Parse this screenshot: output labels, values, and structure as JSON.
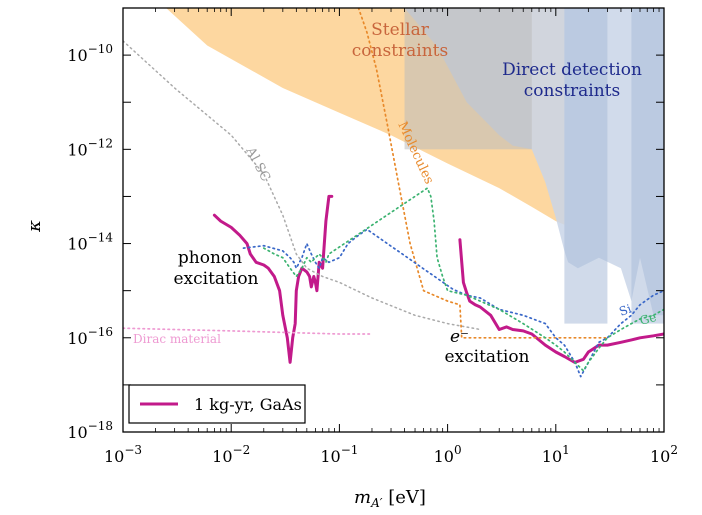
{
  "chart_data": {
    "type": "line",
    "xscale": "log",
    "yscale": "log",
    "xlim": [
      0.001,
      100
    ],
    "ylim": [
      1e-18,
      1e-09
    ],
    "xlabel": "m_A' [eV]",
    "ylabel": "κ",
    "x_ticks": [
      {
        "value": 0.001,
        "base": "10",
        "exp": "−3"
      },
      {
        "value": 0.01,
        "base": "10",
        "exp": "−2"
      },
      {
        "value": 0.1,
        "base": "10",
        "exp": "−1"
      },
      {
        "value": 1,
        "base": "10",
        "exp": "0"
      },
      {
        "value": 10,
        "base": "10",
        "exp": "1"
      },
      {
        "value": 100,
        "base": "10",
        "exp": "2"
      }
    ],
    "y_ticks": [
      {
        "value": 1e-18,
        "base": "10",
        "exp": "−18"
      },
      {
        "value": 1e-16,
        "base": "10",
        "exp": "−16"
      },
      {
        "value": 1e-14,
        "base": "10",
        "exp": "−14"
      },
      {
        "value": 1e-12,
        "base": "10",
        "exp": "−12"
      },
      {
        "value": 1e-10,
        "base": "10",
        "exp": "−10"
      }
    ],
    "legend": {
      "placement": "bottom-left",
      "entries": [
        {
          "label": "1 kg-yr, GaAs",
          "color": "#c21a8a"
        }
      ]
    },
    "regions": [
      {
        "label": "Stellar constraints",
        "color": "#fdd08f",
        "points": [
          [
            0.0025,
            1e-09
          ],
          [
            0.006,
            1.6e-10
          ],
          [
            0.03,
            2e-11
          ],
          [
            0.1,
            6e-12
          ],
          [
            0.3,
            2e-12
          ],
          [
            1,
            5e-13
          ],
          [
            3,
            1.5e-13
          ],
          [
            6,
            6e-14
          ],
          [
            10,
            3e-14
          ],
          [
            12,
            2.5e-14
          ],
          [
            12,
            1e-09
          ]
        ]
      },
      {
        "label": "Direct detection constraints",
        "color": "#c9d5e8",
        "points": [
          [
            0.4,
            1e-09
          ],
          [
            0.8,
            1.5e-10
          ],
          [
            1.5,
            1e-11
          ],
          [
            3,
            2e-12
          ],
          [
            4,
            1.2e-12
          ],
          [
            6,
            1e-12
          ],
          [
            8,
            2e-13
          ],
          [
            10,
            3.5e-14
          ],
          [
            12,
            7e-15
          ],
          [
            13,
            4e-15
          ],
          [
            16,
            3e-15
          ],
          [
            25,
            5e-15
          ],
          [
            40,
            3e-15
          ],
          [
            50,
            6e-16
          ],
          [
            60,
            5e-15
          ],
          [
            80,
            3e-16
          ],
          [
            100,
            3e-16
          ],
          [
            100,
            1e-09
          ]
        ]
      }
    ],
    "bands": [
      {
        "x0": 0.4,
        "x1": 6,
        "ymin": 1e-12,
        "color": "#bcbcbc"
      },
      {
        "x0": 12,
        "x1": 30,
        "ymin": 2e-16,
        "color": "#a9bcd8"
      },
      {
        "x0": 50,
        "x1": 100,
        "ymin": 2e-16,
        "color": "#a9bcd8"
      }
    ],
    "series": [
      {
        "name": "1 kg-yr, GaAs",
        "color": "#c21a8a",
        "style": "solid",
        "width": 3,
        "x": [
          0.007,
          0.008,
          0.01,
          0.012,
          0.014,
          0.015,
          0.017,
          0.02,
          0.022,
          0.025,
          0.028,
          0.03,
          0.033,
          0.035,
          0.037,
          0.039,
          0.04,
          0.042,
          0.045,
          0.05,
          0.053,
          0.055,
          0.058,
          0.06,
          0.062,
          0.065,
          0.07,
          0.072,
          0.075,
          0.08,
          0.085
        ],
        "y": [
          4e-14,
          3e-14,
          2.2e-14,
          1.5e-14,
          1e-14,
          6e-15,
          4e-15,
          3.5e-15,
          3e-15,
          2e-15,
          1e-15,
          3e-16,
          1e-16,
          3e-17,
          1e-16,
          2e-16,
          1e-15,
          2e-15,
          3e-15,
          2.5e-15,
          2e-15,
          1.2e-15,
          2e-15,
          1.5e-15,
          1e-15,
          4e-15,
          3e-15,
          8e-15,
          3e-14,
          1e-13,
          1e-13
        ]
      },
      {
        "name": "GaAs electron",
        "color": "#c21a8a",
        "style": "solid",
        "width": 3,
        "x": [
          1.3,
          1.4,
          1.5,
          1.6,
          1.8,
          2,
          2.5,
          3,
          3.5,
          4,
          5,
          6,
          8,
          10,
          12,
          15,
          18,
          20,
          25,
          30,
          40,
          50,
          60,
          80,
          100
        ],
        "y": [
          1.2e-14,
          1.5e-15,
          9e-16,
          6e-16,
          5e-16,
          4.5e-16,
          3e-16,
          1.5e-16,
          1.7e-16,
          1.5e-16,
          1.4e-16,
          1.2e-16,
          7e-17,
          5e-17,
          4e-17,
          3e-17,
          3.5e-17,
          5e-17,
          7e-17,
          7e-17,
          8e-17,
          9e-17,
          1e-16,
          1.1e-16,
          1.2e-16
        ]
      },
      {
        "name": "Al SC",
        "color": "#aaaaaa",
        "style": "dotted",
        "width": 1.5,
        "x": [
          0.001,
          0.003,
          0.01,
          0.02,
          0.03,
          0.04,
          0.05,
          0.07,
          0.1,
          0.2,
          0.5,
          1,
          2
        ],
        "y": [
          2e-10,
          2e-11,
          2e-12,
          3e-13,
          4e-14,
          6e-15,
          3e-15,
          2e-15,
          1.5e-15,
          7e-16,
          3e-16,
          2e-16,
          1.5e-16
        ]
      },
      {
        "name": "Molecules",
        "color": "#e8892a",
        "style": "dotted",
        "width": 1.7,
        "x": [
          0.15,
          0.18,
          0.22,
          0.28,
          0.35,
          0.45,
          0.6,
          1,
          1.3,
          1.35,
          1.4,
          2,
          5,
          10,
          30
        ],
        "y": [
          1e-09,
          3e-10,
          5e-11,
          3e-12,
          2e-13,
          1e-14,
          1e-15,
          6e-16,
          5e-16,
          1e-16,
          1e-16,
          1e-16,
          1e-16,
          1e-16,
          1e-16
        ]
      },
      {
        "name": "Dirac material",
        "color": "#ee9ad2",
        "style": "dotted",
        "width": 1.7,
        "x": [
          0.001,
          0.003,
          0.01,
          0.03,
          0.1,
          0.2
        ],
        "y": [
          1.6e-16,
          1.5e-16,
          1.4e-16,
          1.3e-16,
          1.2e-16,
          1.2e-16
        ]
      },
      {
        "name": "Si",
        "color": "#3a68c8",
        "style": "dotted",
        "width": 1.7,
        "x": [
          0.013,
          0.02,
          0.03,
          0.035,
          0.038,
          0.04,
          0.045,
          0.05,
          0.055,
          0.06,
          0.065,
          0.07,
          0.08,
          0.1,
          0.12,
          0.15,
          0.18,
          1.1,
          1.2,
          1.5,
          2,
          3,
          5,
          8,
          10,
          12,
          15,
          17,
          20,
          25,
          30,
          40,
          50,
          60,
          80,
          100
        ],
        "y": [
          8e-15,
          9e-15,
          7e-15,
          5e-15,
          4e-15,
          3e-15,
          5e-15,
          1e-14,
          6e-15,
          4e-15,
          3e-15,
          5e-15,
          4e-15,
          5e-15,
          1e-14,
          1.5e-14,
          2e-14,
          1.1e-15,
          1e-15,
          8e-16,
          7e-16,
          4e-16,
          3e-16,
          2e-16,
          1e-16,
          7e-17,
          3e-17,
          1.5e-17,
          3e-17,
          8e-17,
          1e-16,
          2e-16,
          3e-16,
          5e-16,
          8e-16,
          1e-15
        ]
      },
      {
        "name": "Ge",
        "color": "#3cb371",
        "style": "dotted",
        "width": 1.7,
        "x": [
          0.02,
          0.025,
          0.03,
          0.035,
          0.04,
          0.045,
          0.05,
          0.055,
          0.06,
          0.065,
          0.07,
          0.075,
          0.08,
          0.65,
          0.7,
          0.75,
          0.8,
          0.9,
          1,
          1.5,
          2,
          3,
          5,
          8,
          10,
          12,
          15,
          18,
          20,
          25,
          30,
          40,
          50,
          60,
          80,
          100
        ],
        "y": [
          8e-15,
          6e-15,
          5e-15,
          3e-15,
          2e-15,
          3e-15,
          5e-15,
          4e-15,
          5e-15,
          6e-15,
          5e-15,
          4e-15,
          6e-15,
          1.5e-13,
          1e-13,
          3e-14,
          5e-15,
          2e-15,
          1e-15,
          8e-16,
          6e-16,
          4e-16,
          2e-16,
          1e-16,
          7e-17,
          5e-17,
          3e-17,
          2e-17,
          3e-17,
          6e-17,
          1e-16,
          1.5e-16,
          2e-16,
          2.5e-16,
          3e-16,
          4e-16
        ]
      }
    ],
    "annotations": [
      {
        "key": "stellar1",
        "text": "Stellar",
        "color": "#c8653c"
      },
      {
        "key": "stellar2",
        "text": "constraints",
        "color": "#c8653c"
      },
      {
        "key": "dd1",
        "text": "Direct detection",
        "color": "#1e2a8c"
      },
      {
        "key": "dd2",
        "text": "constraints",
        "color": "#1e2a8c"
      },
      {
        "key": "alsc",
        "text": "Al SC",
        "color": "#999999"
      },
      {
        "key": "molecules",
        "text": "Molecules",
        "color": "#e8892a"
      },
      {
        "key": "phonon1",
        "text": "phonon",
        "color": "#000000"
      },
      {
        "key": "phonon2",
        "text": "excitation",
        "color": "#000000"
      },
      {
        "key": "electron_sym",
        "text": "e⁻",
        "color": "#000000"
      },
      {
        "key": "electron2",
        "text": "excitation",
        "color": "#000000"
      },
      {
        "key": "dirac",
        "text": "Dirac material",
        "color": "#ee9ad2"
      },
      {
        "key": "si",
        "text": "Si",
        "color": "#3a68c8"
      },
      {
        "key": "ge",
        "text": "Ge",
        "color": "#3cb371"
      }
    ]
  }
}
